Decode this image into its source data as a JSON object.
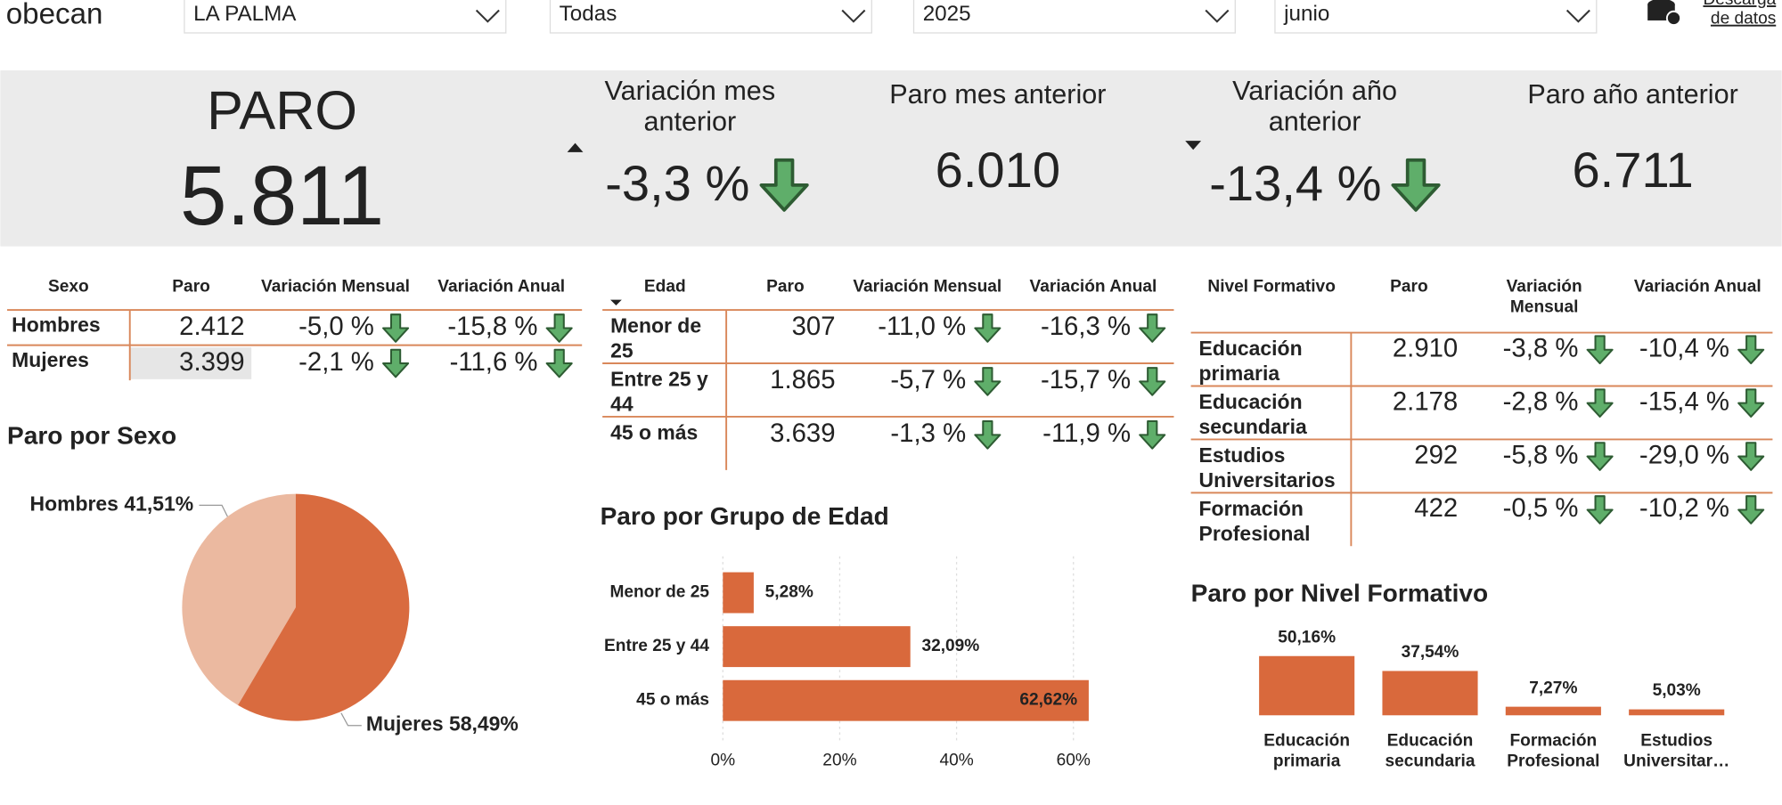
{
  "header": {
    "brand": "obecan",
    "filters": [
      "LA PALMA",
      "Todas",
      "2025",
      "junio"
    ],
    "download": [
      "Descarga",
      "de datos"
    ]
  },
  "kpis": {
    "main": {
      "label": "PARO",
      "value": "5.811"
    },
    "cards": [
      {
        "label": "Variación mes anterior",
        "value": "-3,3 %"
      },
      {
        "label": "Paro mes anterior",
        "value": "6.010"
      },
      {
        "label": "Variación año anterior",
        "value": "-13,4 %"
      },
      {
        "label": "Paro año anterior",
        "value": "6.711"
      }
    ]
  },
  "tables": [
    {
      "headers": [
        "Sexo",
        "Paro",
        "Variación Mensual",
        "Variación Anual"
      ],
      "rows": [
        [
          "Hombres",
          "2.412",
          "-5,0 %",
          "-15,8 %"
        ],
        [
          "Mujeres",
          "3.399",
          "-2,1 %",
          "-11,6 %"
        ]
      ]
    },
    {
      "headers": [
        "Edad",
        "Paro",
        "Variación Mensual",
        "Variación Anual"
      ],
      "rows": [
        [
          "Menor de 25",
          "307",
          "-11,0 %",
          "-16,3 %"
        ],
        [
          "Entre 25 y 44",
          "1.865",
          "-5,7 %",
          "-15,7 %"
        ],
        [
          "45 o más",
          "3.639",
          "-1,3 %",
          "-11,9 %"
        ]
      ]
    },
    {
      "headers": [
        "Nivel Formativo",
        "Paro",
        "Variación Mensual",
        "Variación Anual"
      ],
      "rows": [
        [
          "Educación primaria",
          "2.910",
          "-3,8 %",
          "-10,4 %"
        ],
        [
          "Educación secundaria",
          "2.178",
          "-2,8 %",
          "-15,4 %"
        ],
        [
          "Estudios Universitarios",
          "292",
          "-5,8 %",
          "-29,0 %"
        ],
        [
          "Formación Profesional",
          "422",
          "-0,5 %",
          "-10,2 %"
        ]
      ]
    }
  ],
  "chart_data": [
    {
      "type": "pie",
      "title": "Paro por Sexo",
      "categories": [
        "Hombres",
        "Mujeres"
      ],
      "values": [
        41.51,
        58.49
      ],
      "value_labels": [
        "41,51%",
        "58,49%"
      ],
      "colors": [
        "#ebb9a0",
        "#d96b3f"
      ]
    },
    {
      "type": "hbar",
      "title": "Paro por Grupo de Edad",
      "categories": [
        "Menor de 25",
        "Entre 25 y 44",
        "45 o más"
      ],
      "values": [
        5.28,
        32.09,
        62.62
      ],
      "value_labels": [
        "5,28%",
        "32,09%",
        "62,62%"
      ],
      "color": "#d9693c",
      "xlim": [
        0,
        63
      ],
      "xticks": [
        {
          "value": 0,
          "label": "0%"
        },
        {
          "value": 20,
          "label": "20%"
        },
        {
          "value": 40,
          "label": "40%"
        },
        {
          "value": 60,
          "label": "60%"
        }
      ],
      "grid": true
    },
    {
      "type": "bar",
      "title": "Paro por Nivel Formativo",
      "categories": [
        "Educación primaria",
        "Educación secundaria",
        "Formación Profesional",
        "Estudios Universitar…"
      ],
      "values": [
        50.16,
        37.54,
        7.27,
        5.03
      ],
      "value_labels": [
        "50,16%",
        "37,54%",
        "7,27%",
        "5,03%"
      ],
      "color": "#d9693c"
    }
  ]
}
